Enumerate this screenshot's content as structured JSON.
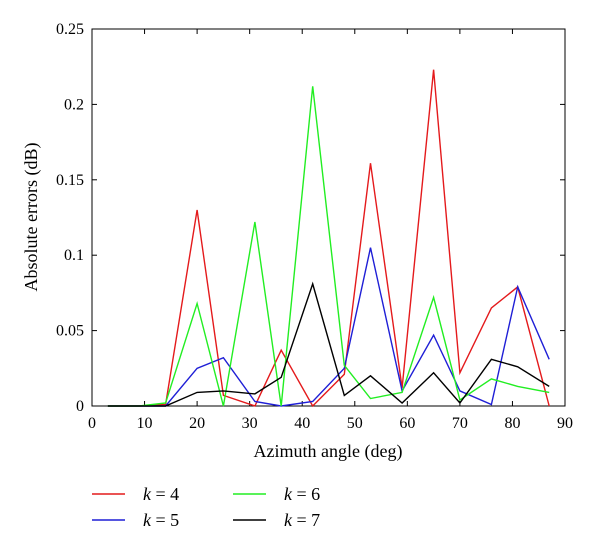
{
  "chart_data": {
    "type": "line",
    "title": "",
    "xlabel": "Azimuth angle (deg)",
    "ylabel": "Absolute errors (dB)",
    "xlim": [
      0,
      90
    ],
    "ylim": [
      0,
      0.25
    ],
    "xticks": [
      0,
      10,
      20,
      30,
      40,
      50,
      60,
      70,
      80,
      90
    ],
    "yticks": [
      0,
      0.05,
      0.1,
      0.15,
      0.2,
      0.25
    ],
    "xtick_labels": [
      "0",
      "10",
      "20",
      "30",
      "40",
      "50",
      "60",
      "70",
      "80",
      "90"
    ],
    "ytick_labels": [
      "0",
      "0.05",
      "0.1",
      "0.15",
      "0.2",
      "0.25"
    ],
    "grid": false,
    "legend_position": "below",
    "x": [
      3,
      9,
      14,
      20,
      25,
      31,
      36,
      42,
      48,
      53,
      59,
      65,
      70,
      76,
      81,
      87
    ],
    "series": [
      {
        "name_prefix": "k",
        "name_suffix": " = 4",
        "color": "#e41a1c",
        "values": [
          0,
          0,
          0.001,
          0.13,
          0.007,
          0,
          0.037,
          0,
          0.021,
          0.161,
          0.012,
          0.223,
          0.022,
          0.065,
          0.079,
          0
        ]
      },
      {
        "name_prefix": "k",
        "name_suffix": " = 5",
        "color": "#1f1fd6",
        "values": [
          0,
          0,
          0,
          0.025,
          0.032,
          0.003,
          0,
          0.003,
          0.025,
          0.105,
          0.01,
          0.047,
          0.01,
          0.001,
          0.079,
          0.031
        ]
      },
      {
        "name_prefix": "k",
        "name_suffix": " = 6",
        "color": "#22ee22",
        "values": [
          0,
          0,
          0.002,
          0.068,
          0,
          0.122,
          0,
          0.212,
          0.027,
          0.005,
          0.009,
          0.072,
          0.004,
          0.018,
          0.013,
          0.009
        ]
      },
      {
        "name_prefix": "k",
        "name_suffix": " = 7",
        "color": "#000000",
        "values": [
          0,
          0,
          0,
          0.009,
          0.01,
          0.008,
          0.019,
          0.081,
          0.007,
          0.02,
          0.002,
          0.022,
          0.002,
          0.031,
          0.026,
          0.013
        ]
      }
    ]
  }
}
